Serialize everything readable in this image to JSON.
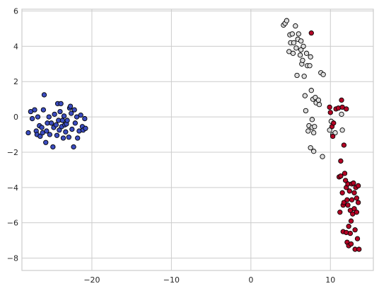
{
  "chart_data": {
    "type": "scatter",
    "title": "",
    "xlabel": "",
    "ylabel": "",
    "xlim": [
      -28.8,
      15.4
    ],
    "ylim": [
      -8.7,
      6.1
    ],
    "grid": true,
    "legend": "none",
    "x_ticks": [
      -20,
      -10,
      0,
      10
    ],
    "x_tick_labels": [
      "−20",
      "−10",
      "0",
      "10"
    ],
    "y_ticks": [
      -8,
      -6,
      -4,
      -2,
      0,
      2,
      4,
      6
    ],
    "y_tick_labels": [
      "−8",
      "−6",
      "−4",
      "−2",
      "0",
      "2",
      "4",
      "6"
    ],
    "colors": {
      "blue": "#3b4cc0",
      "white": "#dddddd",
      "red": "#b40426",
      "edge": "#000000",
      "grid": "#cccccc",
      "spine": "#cccccc"
    },
    "series": [
      {
        "color": "#3b4cc0",
        "points": [
          [
            -28.0,
            -0.9
          ],
          [
            -27.7,
            0.3
          ],
          [
            -27.5,
            -0.1
          ],
          [
            -27.2,
            0.4
          ],
          [
            -27.0,
            -0.8
          ],
          [
            -26.9,
            -1.0
          ],
          [
            -26.8,
            0.0
          ],
          [
            -26.6,
            -0.5
          ],
          [
            -26.5,
            -1.1
          ],
          [
            -26.3,
            -0.6
          ],
          [
            -26.2,
            -0.9
          ],
          [
            -26.1,
            0.4
          ],
          [
            -26.0,
            1.25
          ],
          [
            -25.8,
            -1.45
          ],
          [
            -25.7,
            -0.8
          ],
          [
            -25.6,
            -0.35
          ],
          [
            -25.4,
            0.0
          ],
          [
            -25.3,
            -1.0
          ],
          [
            -25.1,
            -0.35
          ],
          [
            -24.9,
            -1.7
          ],
          [
            -24.8,
            -0.6
          ],
          [
            -24.7,
            0.15
          ],
          [
            -24.5,
            -0.45
          ],
          [
            -24.4,
            -1.05
          ],
          [
            -24.3,
            0.75
          ],
          [
            -24.2,
            -0.2
          ],
          [
            -24.1,
            -0.75
          ],
          [
            -24.0,
            0.3
          ],
          [
            -23.9,
            0.75
          ],
          [
            -23.8,
            -0.55
          ],
          [
            -23.7,
            -0.2
          ],
          [
            -23.6,
            -1.2
          ],
          [
            -23.5,
            0.05
          ],
          [
            -23.4,
            -0.45
          ],
          [
            -23.3,
            -0.85
          ],
          [
            -23.2,
            -0.4
          ],
          [
            -23.1,
            -0.2
          ],
          [
            -22.9,
            -1.15
          ],
          [
            -22.8,
            0.5
          ],
          [
            -22.7,
            0.6
          ],
          [
            -22.6,
            0.2
          ],
          [
            -22.5,
            -0.7
          ],
          [
            -22.3,
            -1.7
          ],
          [
            -22.2,
            0.4
          ],
          [
            -22.1,
            -0.35
          ],
          [
            -21.9,
            0.0
          ],
          [
            -21.8,
            -1.2
          ],
          [
            -21.6,
            -0.8
          ],
          [
            -21.4,
            0.1
          ],
          [
            -21.2,
            -0.55
          ],
          [
            -21.1,
            -0.75
          ],
          [
            -20.9,
            -0.1
          ],
          [
            -20.8,
            -0.65
          ]
        ]
      },
      {
        "color": "#dddddd",
        "points": [
          [
            4.1,
            5.2
          ],
          [
            4.3,
            5.3
          ],
          [
            4.5,
            5.45
          ],
          [
            4.8,
            3.7
          ],
          [
            4.9,
            4.65
          ],
          [
            5.0,
            4.2
          ],
          [
            5.2,
            4.7
          ],
          [
            5.3,
            3.6
          ],
          [
            5.4,
            4.2
          ],
          [
            5.6,
            5.15
          ],
          [
            5.7,
            3.9
          ],
          [
            5.8,
            2.35
          ],
          [
            5.9,
            4.4
          ],
          [
            6.0,
            4.7
          ],
          [
            6.2,
            3.5
          ],
          [
            6.3,
            4.3
          ],
          [
            6.3,
            3.8
          ],
          [
            6.4,
            3.0
          ],
          [
            6.5,
            3.2
          ],
          [
            6.6,
            4.0
          ],
          [
            6.7,
            2.3
          ],
          [
            6.8,
            1.2
          ],
          [
            6.9,
            0.35
          ],
          [
            7.0,
            3.6
          ],
          [
            7.1,
            2.9
          ],
          [
            7.2,
            -0.8
          ],
          [
            7.3,
            -0.5
          ],
          [
            7.4,
            2.9
          ],
          [
            7.5,
            3.4
          ],
          [
            7.5,
            -1.75
          ],
          [
            7.6,
            1.5
          ],
          [
            7.7,
            -0.15
          ],
          [
            7.7,
            -0.6
          ],
          [
            7.8,
            1.0
          ],
          [
            7.9,
            -1.95
          ],
          [
            7.9,
            -0.9
          ],
          [
            8.0,
            -0.55
          ],
          [
            8.1,
            1.1
          ],
          [
            8.2,
            0.8
          ],
          [
            8.5,
            0.95
          ],
          [
            8.6,
            0.7
          ],
          [
            8.8,
            2.5
          ],
          [
            9.0,
            -2.25
          ],
          [
            9.1,
            2.4
          ],
          [
            9.9,
            -0.75
          ],
          [
            10.1,
            -0.25
          ],
          [
            10.3,
            -1.0
          ],
          [
            10.6,
            -0.9
          ],
          [
            11.4,
            0.15
          ],
          [
            11.5,
            -0.75
          ]
        ]
      },
      {
        "color": "#b40426",
        "points": [
          [
            7.6,
            4.75
          ],
          [
            9.9,
            0.55
          ],
          [
            10.0,
            0.25
          ],
          [
            10.2,
            -0.55
          ],
          [
            10.3,
            -1.1
          ],
          [
            10.4,
            -0.35
          ],
          [
            10.7,
            0.45
          ],
          [
            11.0,
            0.5
          ],
          [
            11.1,
            -3.4
          ],
          [
            11.2,
            -5.4
          ],
          [
            11.3,
            -2.5
          ],
          [
            11.3,
            -3.35
          ],
          [
            11.4,
            0.95
          ],
          [
            11.5,
            0.55
          ],
          [
            11.5,
            -4.3
          ],
          [
            11.6,
            -5.0
          ],
          [
            11.6,
            -6.5
          ],
          [
            11.7,
            -1.6
          ],
          [
            11.7,
            -4.85
          ],
          [
            11.8,
            -3.2
          ],
          [
            11.9,
            -3.6
          ],
          [
            12.0,
            0.45
          ],
          [
            12.0,
            -4.0
          ],
          [
            12.0,
            -6.55
          ],
          [
            12.1,
            -7.1
          ],
          [
            12.1,
            -4.7
          ],
          [
            12.2,
            -3.8
          ],
          [
            12.2,
            -5.0
          ],
          [
            12.3,
            -6.2
          ],
          [
            12.3,
            -7.3
          ],
          [
            12.4,
            -4.2
          ],
          [
            12.5,
            -5.3
          ],
          [
            12.5,
            -6.6
          ],
          [
            12.6,
            -5.9
          ],
          [
            12.6,
            -7.2
          ],
          [
            12.7,
            -3.8
          ],
          [
            12.7,
            -4.7
          ],
          [
            12.8,
            -5.5
          ],
          [
            12.9,
            -3.75
          ],
          [
            13.0,
            -4.3
          ],
          [
            13.0,
            -5.2
          ],
          [
            13.1,
            -6.4
          ],
          [
            13.1,
            -7.5
          ],
          [
            13.2,
            -4.0
          ],
          [
            13.3,
            -4.6
          ],
          [
            13.3,
            -5.4
          ],
          [
            13.4,
            -6.9
          ],
          [
            13.5,
            -4.85
          ],
          [
            13.5,
            -3.9
          ],
          [
            13.6,
            -7.5
          ]
        ]
      }
    ]
  }
}
